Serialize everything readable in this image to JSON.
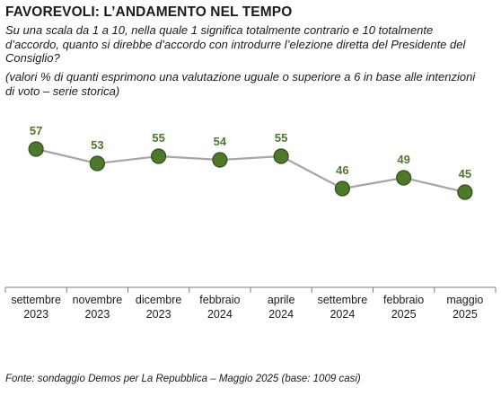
{
  "header": {
    "title": "FAVOREVOLI: L’ANDAMENTO NEL TEMPO",
    "subtitle": "Su una scala da 1 a 10, nella quale 1 significa totalmente contrario e 10 totalmente d’accordo, quanto si direbbe d’accordo con introdurre l’elezione diretta del Presidente del Consiglio?",
    "note": "(valori % di quanti esprimono una valutazione uguale o superiore a 6 in base alle intenzioni di voto – serie storica)"
  },
  "footer": {
    "source": "Fonte: sondaggio Demos per La Repubblica – Maggio 2025 (base: 1009 casi)"
  },
  "chart_data": {
    "type": "line",
    "categories": [
      [
        "settembre",
        "2023"
      ],
      [
        "novembre",
        "2023"
      ],
      [
        "dicembre",
        "2023"
      ],
      [
        "febbraio",
        "2024"
      ],
      [
        "aprile",
        "2024"
      ],
      [
        "settembre",
        "2024"
      ],
      [
        "febbraio",
        "2025"
      ],
      [
        "maggio",
        "2025"
      ]
    ],
    "values": [
      57,
      53,
      55,
      54,
      55,
      46,
      49,
      45
    ],
    "line_color": "#a6a6a6",
    "marker_color": "#4d7a2a",
    "marker_edge_color": "#2f4f17",
    "label_color": "#4d7a2a",
    "axis_color": "#7f7f7f"
  }
}
